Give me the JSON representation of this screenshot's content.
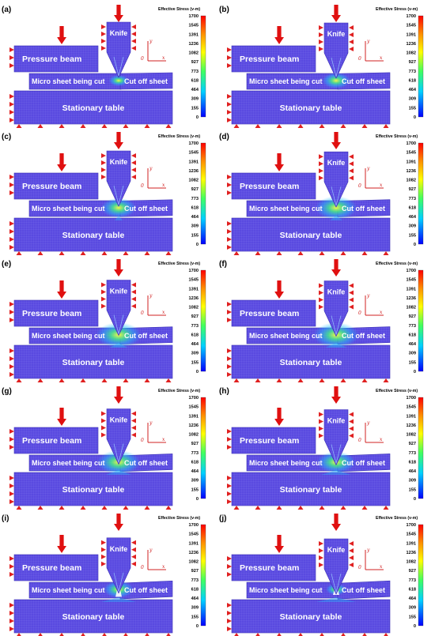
{
  "panels": [
    {
      "label": "(a)",
      "cut": 0.0
    },
    {
      "label": "(b)",
      "cut": 0.1
    },
    {
      "label": "(c)",
      "cut": 0.2
    },
    {
      "label": "(d)",
      "cut": 0.32
    },
    {
      "label": "(e)",
      "cut": 0.45
    },
    {
      "label": "(f)",
      "cut": 0.55
    },
    {
      "label": "(g)",
      "cut": 0.65
    },
    {
      "label": "(h)",
      "cut": 0.75
    },
    {
      "label": "(i)",
      "cut": 0.88
    },
    {
      "label": "(j)",
      "cut": 1.0
    }
  ],
  "labels": {
    "knife": "Knife",
    "pressure_beam": "Pressure beam",
    "micro_sheet": "Micro sheet being cut",
    "cut_off_sheet": "Cut off sheet",
    "table": "Stationary table",
    "velocity_symbol": "v",
    "force_symbol": "F",
    "force_subscript": "1",
    "axis_x": "x",
    "axis_y": "y",
    "axis_origin": "0"
  },
  "colorbar": {
    "title": "Effective Stress (v-m)",
    "ticks": [
      "1700",
      "1545",
      "1391",
      "1236",
      "1082",
      "927",
      "773",
      "618",
      "464",
      "309",
      "155",
      "0"
    ],
    "colors": [
      "#ff0000",
      "#ff4000",
      "#ff8000",
      "#ffc000",
      "#ffff00",
      "#c0ff00",
      "#40ff40",
      "#00ff80",
      "#00ffff",
      "#00c0ff",
      "#0060ff",
      "#0000ff"
    ]
  },
  "colors": {
    "mesh_fill": "#5a4ae0",
    "mesh_line": "#7b70ee",
    "mesh_border": "#3a2fb5",
    "arrow_red": "#e01010",
    "support_red": "#e02020",
    "axis_red": "#d02020"
  }
}
